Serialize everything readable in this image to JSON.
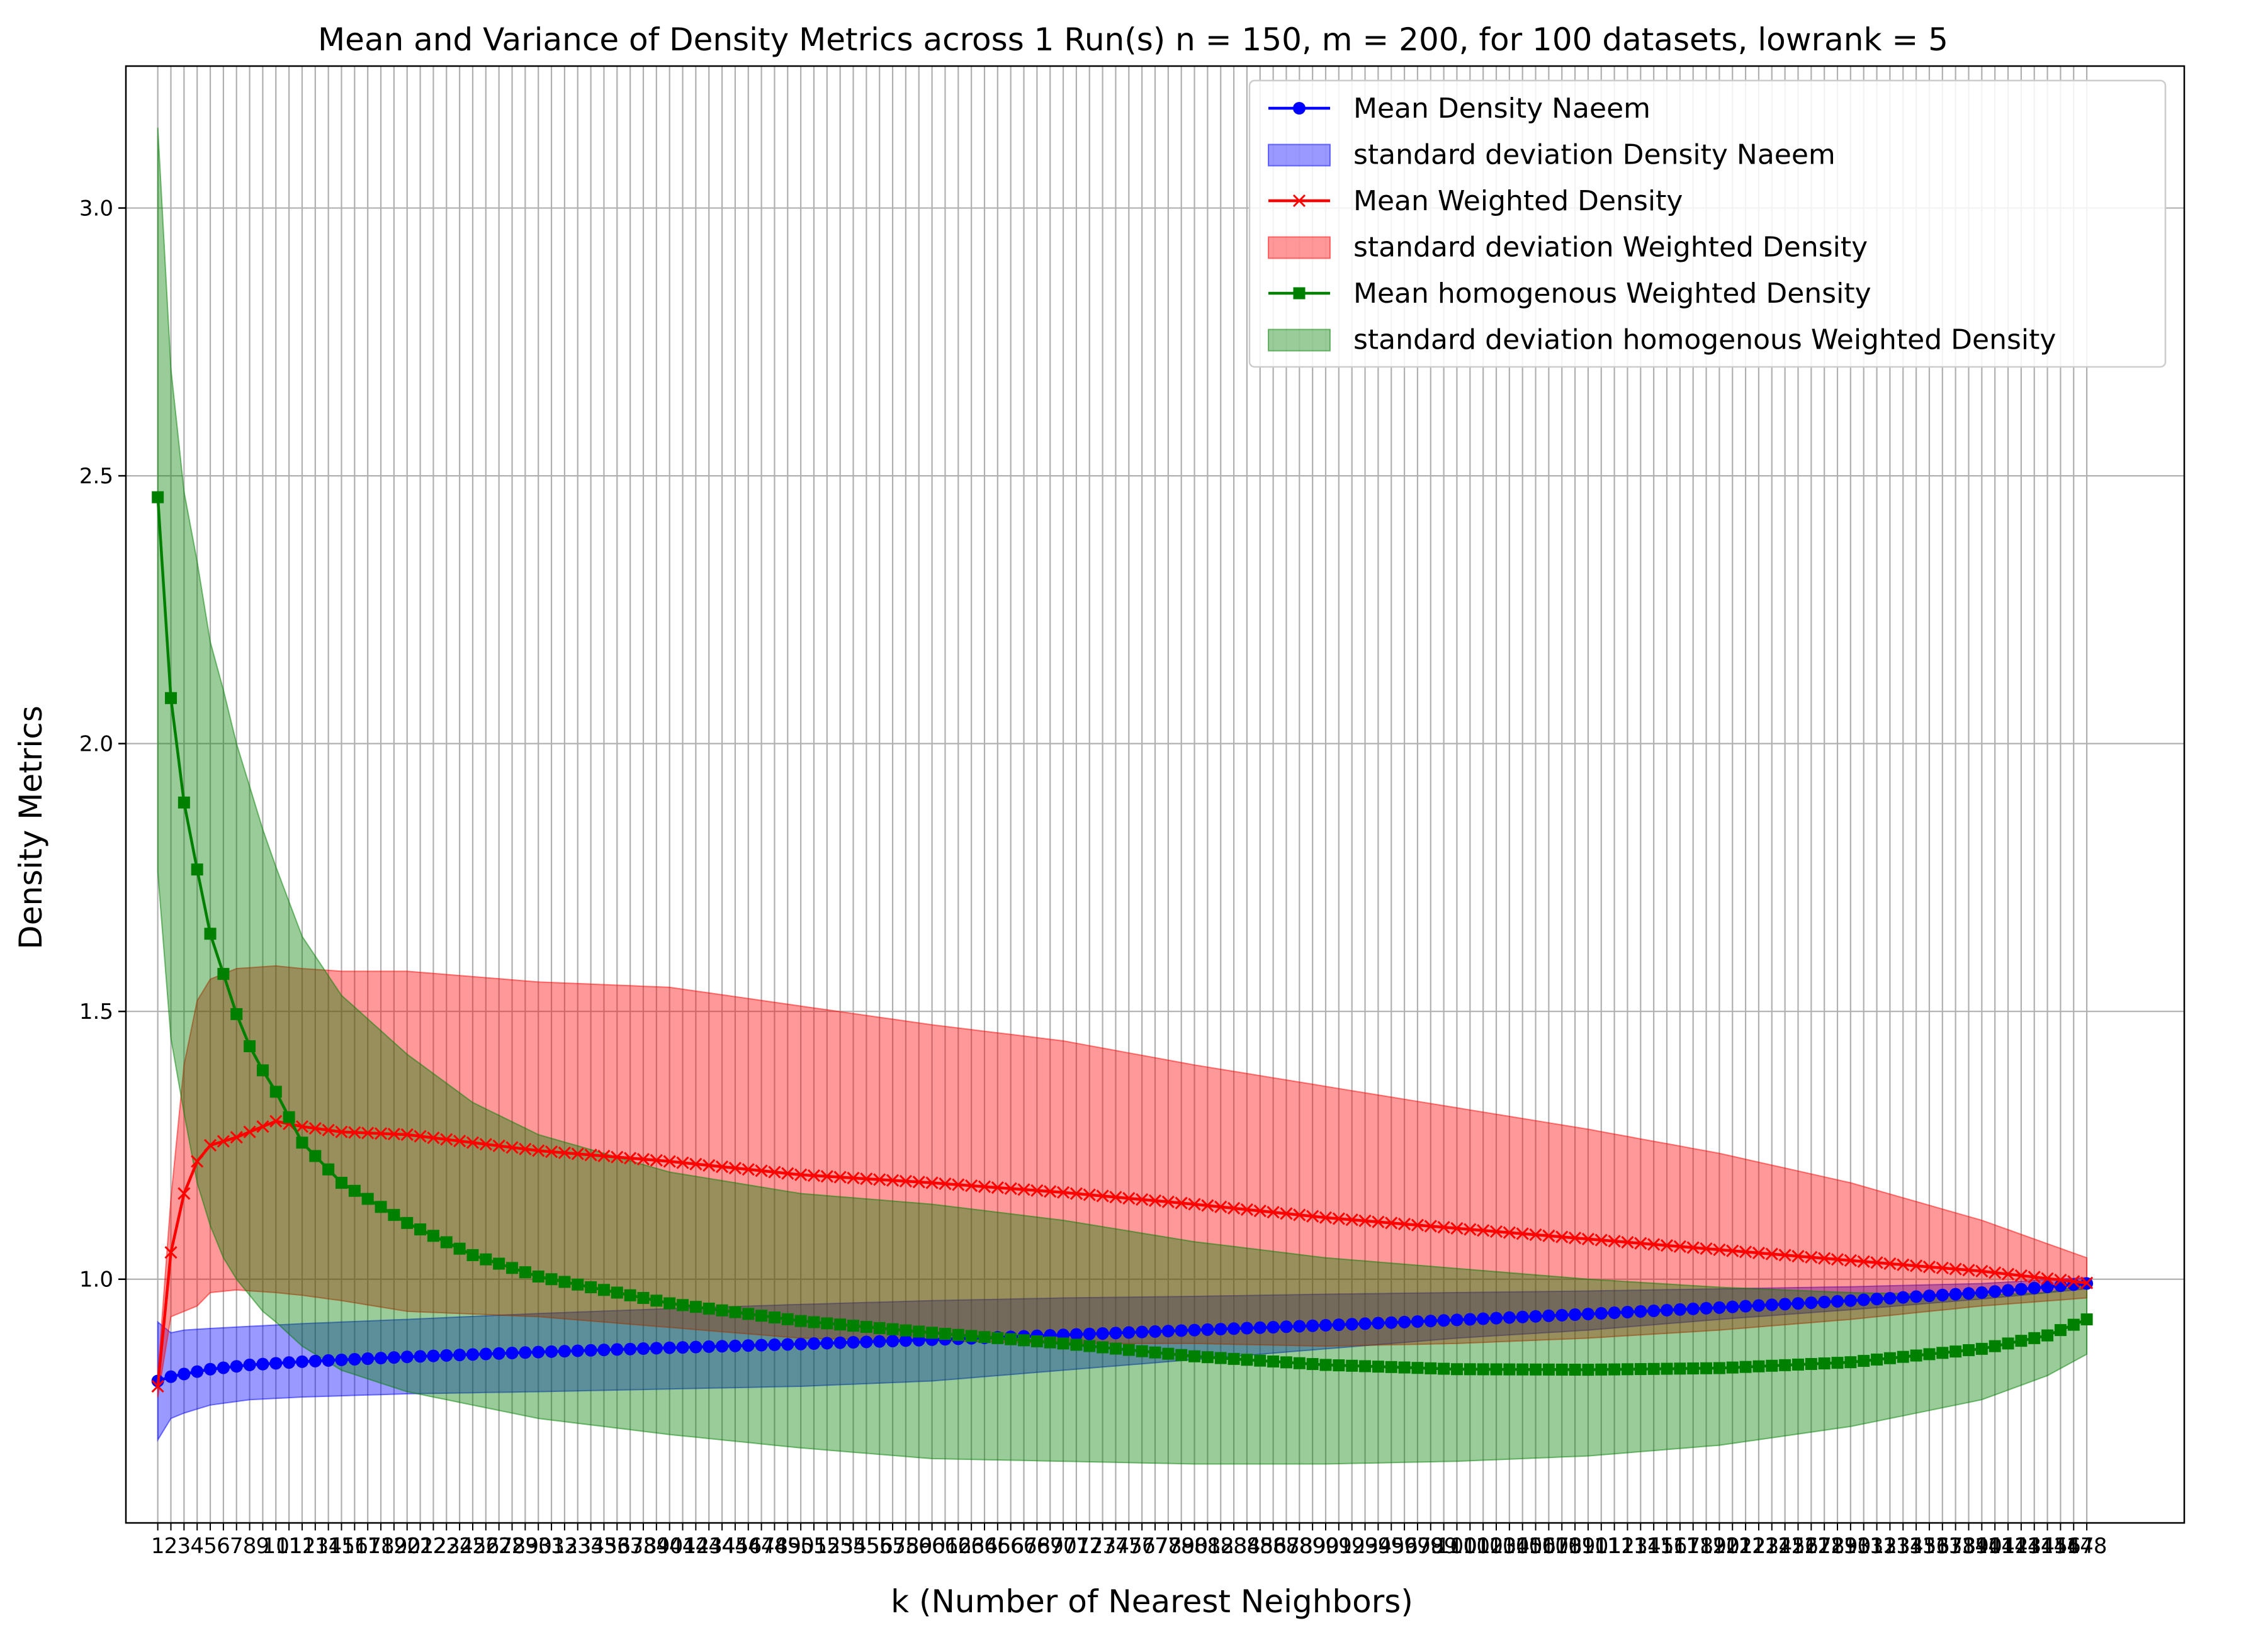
{
  "chart_data": {
    "type": "line",
    "title": "Mean and Variance of Density Metrics across 1 Run(s) n  = 150, m  = 200, for 100 datasets, lowrank = 5",
    "xlabel": "k (Number of Nearest Neighbors)",
    "ylabel": "Density Metrics",
    "xlim": [
      -1.43,
      155.43
    ],
    "ylim": [
      0.545,
      3.265
    ],
    "yticks": [
      1.0,
      1.5,
      2.0,
      2.5,
      3.0
    ],
    "ytick_labels": [
      "1.0",
      "1.5",
      "2.0",
      "2.5",
      "3.0"
    ],
    "x_categories_range": [
      1,
      148
    ],
    "grid": true,
    "legend_position": "upper right",
    "colors": {
      "naeem": "#0000ff",
      "weighted": "#ff0000",
      "homogenous": "#008000"
    },
    "series": [
      {
        "name": "Mean Density Naeem",
        "band_name": "standard deviation Density Naeem",
        "marker": "circle",
        "anchors_x": [
          1,
          2,
          3,
          5,
          8,
          12,
          20,
          30,
          40,
          50,
          60,
          70,
          80,
          90,
          100,
          110,
          120,
          130,
          140,
          148
        ],
        "mean": [
          0.81,
          0.818,
          0.823,
          0.832,
          0.84,
          0.846,
          0.855,
          0.864,
          0.872,
          0.879,
          0.887,
          0.896,
          0.905,
          0.914,
          0.924,
          0.935,
          0.947,
          0.96,
          0.975,
          0.992
        ],
        "lower": [
          0.7,
          0.74,
          0.75,
          0.765,
          0.775,
          0.78,
          0.786,
          0.79,
          0.795,
          0.8,
          0.81,
          0.83,
          0.85,
          0.87,
          0.89,
          0.905,
          0.925,
          0.943,
          0.963,
          0.982
        ],
        "upper": [
          0.92,
          0.9,
          0.905,
          0.908,
          0.912,
          0.917,
          0.925,
          0.936,
          0.945,
          0.953,
          0.96,
          0.965,
          0.968,
          0.972,
          0.975,
          0.978,
          0.982,
          0.986,
          0.992,
          1.003
        ]
      },
      {
        "name": "Mean Weighted Density",
        "band_name": "standard deviation Weighted Density",
        "marker": "x",
        "anchors_x": [
          1,
          2,
          3,
          4,
          5,
          7,
          10,
          12,
          15,
          20,
          30,
          40,
          50,
          60,
          70,
          80,
          90,
          100,
          110,
          120,
          130,
          140,
          148
        ],
        "mean": [
          0.8,
          1.05,
          1.16,
          1.22,
          1.25,
          1.265,
          1.295,
          1.285,
          1.275,
          1.27,
          1.24,
          1.22,
          1.195,
          1.18,
          1.162,
          1.14,
          1.115,
          1.095,
          1.075,
          1.055,
          1.035,
          1.015,
          0.993
        ],
        "lower": [
          0.78,
          0.93,
          0.94,
          0.95,
          0.975,
          0.98,
          0.975,
          0.97,
          0.96,
          0.94,
          0.93,
          0.91,
          0.89,
          0.885,
          0.88,
          0.88,
          0.875,
          0.88,
          0.89,
          0.905,
          0.925,
          0.95,
          0.965
        ],
        "upper": [
          0.82,
          1.15,
          1.4,
          1.52,
          1.56,
          1.58,
          1.585,
          1.58,
          1.575,
          1.575,
          1.555,
          1.545,
          1.51,
          1.475,
          1.445,
          1.4,
          1.36,
          1.32,
          1.28,
          1.235,
          1.18,
          1.11,
          1.04
        ]
      },
      {
        "name": "Mean homogenous Weighted Density",
        "band_name": "standard deviation homogenous Weighted Density",
        "marker": "square",
        "anchors_x": [
          1,
          2,
          3,
          4,
          5,
          6,
          7,
          8,
          9,
          10,
          12,
          15,
          20,
          25,
          30,
          40,
          50,
          60,
          70,
          80,
          90,
          100,
          110,
          120,
          130,
          140,
          145,
          148
        ],
        "mean": [
          2.46,
          2.085,
          1.89,
          1.765,
          1.645,
          1.57,
          1.495,
          1.435,
          1.39,
          1.35,
          1.255,
          1.18,
          1.105,
          1.045,
          1.005,
          0.955,
          0.922,
          0.9,
          0.88,
          0.856,
          0.84,
          0.832,
          0.831,
          0.834,
          0.845,
          0.87,
          0.895,
          0.925
        ],
        "lower": [
          1.76,
          1.45,
          1.31,
          1.18,
          1.1,
          1.04,
          1.0,
          0.97,
          0.94,
          0.92,
          0.875,
          0.83,
          0.79,
          0.765,
          0.74,
          0.71,
          0.685,
          0.665,
          0.66,
          0.655,
          0.655,
          0.66,
          0.67,
          0.69,
          0.725,
          0.775,
          0.82,
          0.86
        ],
        "upper": [
          3.15,
          2.7,
          2.47,
          2.34,
          2.19,
          2.1,
          2.0,
          1.92,
          1.84,
          1.77,
          1.64,
          1.53,
          1.42,
          1.33,
          1.27,
          1.2,
          1.16,
          1.14,
          1.11,
          1.07,
          1.04,
          1.02,
          1.0,
          0.985,
          0.975,
          0.97,
          0.975,
          0.99
        ]
      }
    ]
  }
}
